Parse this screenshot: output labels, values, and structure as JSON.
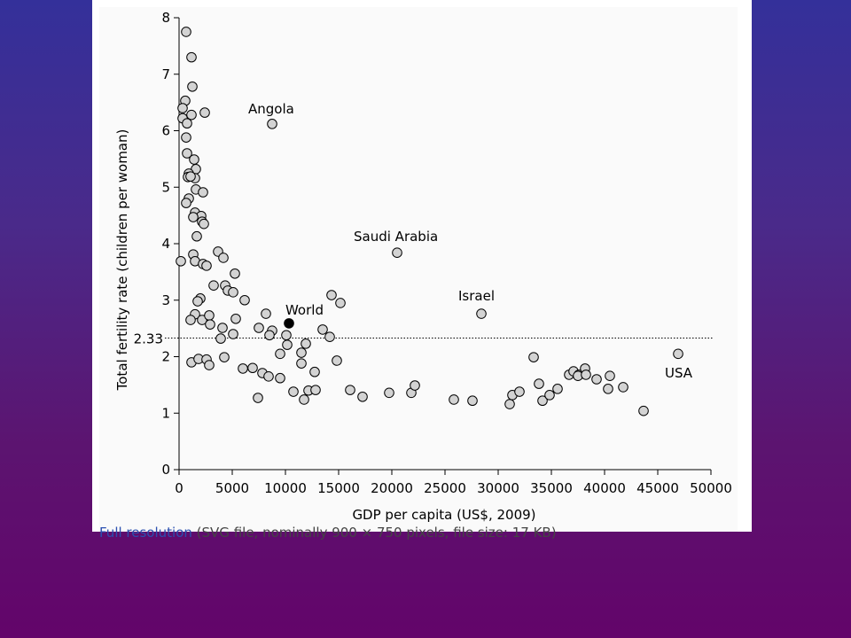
{
  "chart_data": {
    "type": "scatter",
    "xlabel": "GDP per capita (US$, 2009)",
    "ylabel": "Total fertility rate (children per woman)",
    "xlim": [
      0,
      50000
    ],
    "ylim": [
      0,
      8
    ],
    "xticks": [
      0,
      5000,
      10000,
      15000,
      20000,
      25000,
      30000,
      35000,
      40000,
      45000,
      50000
    ],
    "yticks": [
      0,
      1,
      2,
      3,
      4,
      5,
      6,
      7,
      8
    ],
    "hline": 2.33,
    "series": [
      {
        "color": "#d3d3d3",
        "x": [
          667,
          1167,
          1250,
          583,
          333,
          333,
          1167,
          2417,
          750,
          667,
          750,
          1417,
          1583,
          917,
          833,
          1500,
          1083,
          1583,
          2250,
          917,
          667,
          1500,
          2083,
          1333,
          2167,
          2333,
          1667,
          167,
          1333,
          1500,
          2250,
          2583,
          3667,
          4167,
          5250,
          3250,
          4333,
          4583,
          5083,
          6167,
          2000,
          1750,
          1500,
          1083,
          2167,
          2833,
          2917,
          5333,
          4083,
          5083,
          3917,
          8167,
          7500,
          8750,
          8500,
          10083,
          10167,
          9500,
          4250,
          1167,
          1833,
          2583,
          2833,
          6000,
          6917,
          7833,
          8417,
          9500,
          7417,
          10750,
          11500,
          11917,
          11500,
          12750,
          12167,
          11750,
          12833,
          13500,
          14167,
          14333,
          15167,
          14833,
          16083,
          17250,
          19750,
          20500,
          21833,
          22167,
          8750,
          25833,
          27583,
          28417,
          31083,
          31333,
          32000,
          33333,
          33833,
          34167,
          34833,
          35583,
          36667,
          37083,
          37583,
          37500,
          38167,
          38250,
          39250,
          40333,
          40500,
          41750,
          43667,
          46917
        ],
        "values": [
          7.75,
          7.3,
          6.78,
          6.53,
          6.4,
          6.22,
          6.28,
          6.32,
          6.13,
          5.88,
          5.6,
          5.49,
          5.32,
          5.24,
          5.18,
          5.16,
          5.19,
          4.96,
          4.91,
          4.8,
          4.72,
          4.55,
          4.49,
          4.47,
          4.39,
          4.35,
          4.13,
          3.69,
          3.81,
          3.69,
          3.64,
          3.61,
          3.86,
          3.75,
          3.47,
          3.26,
          3.26,
          3.17,
          3.14,
          3.0,
          3.03,
          2.98,
          2.75,
          2.65,
          2.65,
          2.73,
          2.57,
          2.67,
          2.51,
          2.4,
          2.32,
          2.76,
          2.51,
          2.46,
          2.38,
          2.38,
          2.21,
          2.05,
          1.99,
          1.9,
          1.96,
          1.95,
          1.85,
          1.79,
          1.8,
          1.71,
          1.65,
          1.62,
          1.27,
          1.38,
          2.07,
          2.23,
          1.88,
          1.73,
          1.4,
          1.24,
          1.41,
          2.48,
          2.35,
          3.09,
          2.95,
          1.93,
          1.41,
          1.29,
          1.36,
          3.84,
          1.36,
          1.49,
          6.12,
          1.24,
          1.22,
          2.76,
          1.16,
          1.32,
          1.38,
          1.99,
          1.52,
          1.22,
          1.32,
          1.43,
          1.68,
          1.74,
          1.68,
          1.66,
          1.79,
          1.68,
          1.6,
          1.43,
          1.66,
          1.46,
          1.04,
          2.05
        ]
      },
      {
        "name": "World",
        "color": "#000000",
        "x": [
          10333
        ],
        "values": [
          2.59
        ]
      }
    ],
    "annotations": [
      "Angola",
      "Saudi Arabia",
      "Israel",
      "USA"
    ]
  },
  "footer": {
    "link": "Full resolution",
    "rest": "(SVG file, nominally 900 × 750 pixels, file size: 17 KB)"
  }
}
